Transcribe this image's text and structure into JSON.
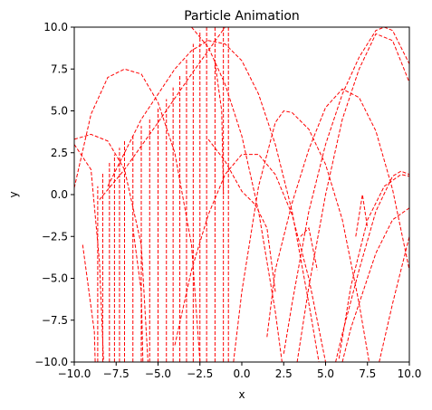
{
  "chart_data": {
    "type": "line",
    "title": "Particle Animation",
    "xlabel": "x",
    "ylabel": "y",
    "xlim": [
      -10,
      10
    ],
    "ylim": [
      -10,
      10
    ],
    "xticks": [
      -10,
      -7.5,
      -5,
      -2.5,
      0,
      2.5,
      5,
      7.5,
      10
    ],
    "xtick_labels": [
      "−10.0",
      "−7.5",
      "−5.0",
      "−2.5",
      "0.0",
      "2.5",
      "5.0",
      "7.5",
      "10.0"
    ],
    "yticks": [
      -10,
      -7.5,
      -5,
      -2.5,
      0,
      2.5,
      5,
      7.5,
      10
    ],
    "ytick_labels": [
      "−10.0",
      "−7.5",
      "−5.0",
      "−2.5",
      "0.0",
      "2.5",
      "5.0",
      "7.5",
      "10.0"
    ],
    "grid": false,
    "line_color": "#ff0000",
    "line_style": "dashed",
    "series": [
      {
        "values": [
          [
            -10,
            3.0
          ],
          [
            -9,
            1.5
          ],
          [
            -8.5,
            -4
          ],
          [
            -8.25,
            -10
          ]
        ]
      },
      {
        "values": [
          [
            -10,
            3.3
          ],
          [
            -9,
            3.6
          ],
          [
            -8,
            3.2
          ],
          [
            -7,
            1.5
          ],
          [
            -6,
            -3
          ],
          [
            -5.6,
            -10
          ]
        ]
      },
      {
        "values": [
          [
            -10,
            0.4
          ],
          [
            -9,
            4.8
          ],
          [
            -8,
            7.0
          ],
          [
            -7,
            7.5
          ],
          [
            -6,
            7.2
          ],
          [
            -5,
            5.5
          ],
          [
            -4,
            2.5
          ],
          [
            -3,
            -3
          ],
          [
            -2.5,
            -10
          ]
        ]
      },
      {
        "values": [
          [
            -8.5,
            -0.3
          ],
          [
            -7,
            1.5
          ],
          [
            -5,
            4.3
          ],
          [
            -3,
            7.2
          ],
          [
            -1,
            10.0
          ]
        ]
      },
      {
        "values": [
          [
            -8,
            0.5
          ],
          [
            -6,
            4.5
          ],
          [
            -4,
            7.5
          ],
          [
            -3,
            8.6
          ],
          [
            -2,
            9.2
          ],
          [
            -1,
            9.0
          ],
          [
            0,
            8.0
          ],
          [
            1,
            6.0
          ],
          [
            2,
            3.0
          ],
          [
            3,
            -1.0
          ],
          [
            4,
            -6.5
          ],
          [
            4.6,
            -10
          ]
        ]
      },
      {
        "values": [
          [
            -9.5,
            -3
          ],
          [
            -8.8,
            -8.2
          ],
          [
            -8.75,
            -10
          ]
        ]
      },
      {
        "values": [
          [
            -6.5,
            -2.0
          ],
          [
            -6,
            -5.8
          ],
          [
            -5.9,
            -10
          ]
        ]
      },
      {
        "values": [
          [
            -3,
            10
          ],
          [
            -2,
            8.8
          ],
          [
            -1,
            6.6
          ],
          [
            0,
            3.5
          ],
          [
            1,
            -1.0
          ],
          [
            2,
            -7.0
          ],
          [
            2.4,
            -10
          ]
        ]
      },
      {
        "values": [
          [
            -2,
            3.3
          ],
          [
            -1,
            2.0
          ],
          [
            0,
            0.2
          ],
          [
            0.8,
            -0.6
          ]
        ]
      },
      {
        "values": [
          [
            -1.6,
            7.9
          ],
          [
            -1.2,
            5.0
          ],
          [
            -1.1,
            0
          ]
        ]
      },
      {
        "values": [
          [
            -4,
            -9
          ],
          [
            -3,
            -4.5
          ],
          [
            -2,
            -1.2
          ],
          [
            -1,
            1.2
          ],
          [
            0,
            2.4
          ],
          [
            1,
            2.4
          ],
          [
            2,
            1.2
          ],
          [
            3,
            -1.2
          ],
          [
            4,
            -5.0
          ],
          [
            5,
            -10
          ]
        ]
      },
      {
        "values": [
          [
            0.8,
            -0.6
          ],
          [
            1.5,
            -2.0
          ],
          [
            2,
            -5.8
          ]
        ]
      },
      {
        "values": [
          [
            -0.5,
            -10
          ],
          [
            0,
            -5.8
          ],
          [
            1,
            0.5
          ],
          [
            2,
            4.3
          ],
          [
            2.5,
            5.0
          ],
          [
            3,
            4.9
          ],
          [
            4,
            3.9
          ],
          [
            5,
            1.8
          ],
          [
            6,
            -1.5
          ],
          [
            7,
            -6.5
          ],
          [
            7.6,
            -10
          ]
        ]
      },
      {
        "values": [
          [
            1.5,
            -8.5
          ],
          [
            2,
            -4.5
          ],
          [
            3,
            -0.5
          ],
          [
            4,
            2.7
          ],
          [
            5,
            5.2
          ],
          [
            6,
            6.3
          ],
          [
            7,
            5.8
          ],
          [
            8,
            3.8
          ],
          [
            9,
            0.3
          ],
          [
            10,
            -4.5
          ]
        ]
      },
      {
        "values": [
          [
            2.5,
            -9.5
          ],
          [
            3,
            -6.5
          ],
          [
            4,
            -1.0
          ],
          [
            5,
            3.0
          ],
          [
            6,
            6.0
          ],
          [
            7,
            8.2
          ],
          [
            8,
            9.8
          ],
          [
            8.5,
            10.0
          ],
          [
            9,
            9.8
          ],
          [
            10,
            7.8
          ]
        ]
      },
      {
        "values": [
          [
            3.3,
            -10
          ],
          [
            4,
            -5.5
          ],
          [
            5,
            0.0
          ],
          [
            6,
            4.5
          ],
          [
            7,
            7.5
          ],
          [
            8,
            9.6
          ],
          [
            9,
            9.2
          ],
          [
            10,
            6.7
          ]
        ]
      },
      {
        "values": [
          [
            5.6,
            -10
          ],
          [
            6,
            -8.3
          ],
          [
            7,
            -4.5
          ],
          [
            8,
            -1.0
          ],
          [
            9,
            1.1
          ],
          [
            9.5,
            1.4
          ],
          [
            10,
            1.2
          ]
        ]
      },
      {
        "values": [
          [
            6,
            -10
          ],
          [
            6.5,
            -8
          ],
          [
            7,
            -6.5
          ],
          [
            8,
            -3.5
          ],
          [
            9,
            -1.5
          ],
          [
            10,
            -0.8
          ]
        ]
      },
      {
        "values": [
          [
            5.8,
            -9.8
          ],
          [
            6.5,
            -5.5
          ],
          [
            7.5,
            -1.5
          ],
          [
            8.5,
            0.5
          ],
          [
            9.5,
            1.2
          ],
          [
            10,
            1.1
          ]
        ]
      },
      {
        "values": [
          [
            6.8,
            -2.5
          ],
          [
            7.2,
            0
          ],
          [
            7.5,
            -2
          ]
        ]
      },
      {
        "values": [
          [
            8.2,
            -10
          ],
          [
            9,
            -6.5
          ],
          [
            10,
            -2.5
          ]
        ]
      },
      {
        "values": [
          [
            3.5,
            -2.5
          ],
          [
            4,
            -2.0
          ],
          [
            4.5,
            -4.5
          ]
        ]
      }
    ],
    "spikes": [
      [
        -8.6,
        -10,
        0.5
      ],
      [
        -8.3,
        -10,
        1.3
      ],
      [
        -7.9,
        -10,
        1.9
      ],
      [
        -7.6,
        -10,
        2.4
      ],
      [
        -7.3,
        -10,
        2.8
      ],
      [
        -7.0,
        -10,
        3.2
      ],
      [
        -6.5,
        -10,
        3.6
      ],
      [
        -6.0,
        -10,
        4.1
      ],
      [
        -5.5,
        -10,
        4.6
      ],
      [
        -5.0,
        -10,
        5.2
      ],
      [
        -4.5,
        -10,
        5.7
      ],
      [
        -4.1,
        -10,
        6.4
      ],
      [
        -3.7,
        -10,
        7.1
      ],
      [
        -3.3,
        -10,
        8.1
      ],
      [
        -2.9,
        -10,
        9.0
      ],
      [
        -2.5,
        -10,
        9.8
      ],
      [
        -2.1,
        -10,
        10.0
      ],
      [
        -1.6,
        -10,
        10.0
      ],
      [
        -1.1,
        -10,
        10.0
      ],
      [
        -0.8,
        -10,
        10.0
      ]
    ]
  }
}
